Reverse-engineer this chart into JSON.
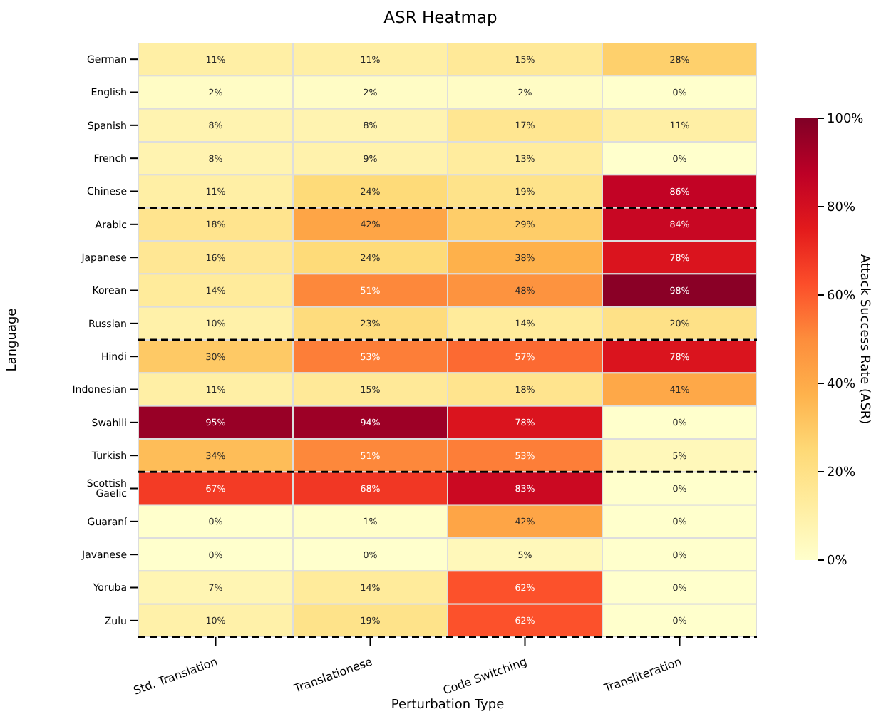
{
  "chart_data": {
    "type": "heatmap",
    "title": "ASR Heatmap",
    "xlabel": "Perturbation Type",
    "ylabel": "Language",
    "clabel": "Attack Success Rate (ASR)",
    "categories": [
      "Std. Translation",
      "Translationese",
      "Code Switching",
      "Transliteration"
    ],
    "y_categories": [
      "German",
      "English",
      "Spanish",
      "French",
      "Chinese",
      "Arabic",
      "Japanese",
      "Korean",
      "Russian",
      "Hindi",
      "Indonesian",
      "Swahili",
      "Turkish",
      "Scottish Gaelic",
      "Guaraní",
      "Javanese",
      "Yoruba",
      "Zulu"
    ],
    "cells": [
      [
        11,
        11,
        15,
        28
      ],
      [
        2,
        2,
        2,
        0
      ],
      [
        8,
        8,
        17,
        11
      ],
      [
        8,
        9,
        13,
        0
      ],
      [
        11,
        24,
        19,
        86
      ],
      [
        18,
        42,
        29,
        84
      ],
      [
        16,
        24,
        38,
        78
      ],
      [
        14,
        51,
        48,
        98
      ],
      [
        10,
        23,
        14,
        20
      ],
      [
        30,
        53,
        57,
        78
      ],
      [
        11,
        15,
        18,
        41
      ],
      [
        95,
        94,
        78,
        0
      ],
      [
        34,
        51,
        53,
        5
      ],
      [
        67,
        68,
        83,
        0
      ],
      [
        0,
        1,
        42,
        0
      ],
      [
        0,
        0,
        5,
        0
      ],
      [
        7,
        14,
        62,
        0
      ],
      [
        10,
        19,
        62,
        0
      ]
    ],
    "cell_labels": [
      [
        "11%",
        "11%",
        "15%",
        "28%"
      ],
      [
        "2%",
        "2%",
        "2%",
        "0%"
      ],
      [
        "8%",
        "8%",
        "17%",
        "11%"
      ],
      [
        "8%",
        "9%",
        "13%",
        "0%"
      ],
      [
        "11%",
        "24%",
        "19%",
        "86%"
      ],
      [
        "18%",
        "42%",
        "29%",
        "84%"
      ],
      [
        "16%",
        "24%",
        "38%",
        "78%"
      ],
      [
        "14%",
        "51%",
        "48%",
        "98%"
      ],
      [
        "10%",
        "23%",
        "14%",
        "20%"
      ],
      [
        "30%",
        "53%",
        "57%",
        "78%"
      ],
      [
        "11%",
        "15%",
        "18%",
        "41%"
      ],
      [
        "95%",
        "94%",
        "78%",
        "0%"
      ],
      [
        "34%",
        "51%",
        "53%",
        "5%"
      ],
      [
        "67%",
        "68%",
        "83%",
        "0%"
      ],
      [
        "0%",
        "1%",
        "42%",
        "0%"
      ],
      [
        "0%",
        "0%",
        "5%",
        "0%"
      ],
      [
        "7%",
        "14%",
        "62%",
        "0%"
      ],
      [
        "10%",
        "19%",
        "62%",
        "0%"
      ]
    ],
    "clim": [
      0,
      100
    ],
    "cticks": [
      {
        "value": 0,
        "label": "0%"
      },
      {
        "value": 20,
        "label": "20%"
      },
      {
        "value": 40,
        "label": "40%"
      },
      {
        "value": 60,
        "label": "60%"
      },
      {
        "value": 80,
        "label": "80%"
      },
      {
        "value": 100,
        "label": "100%"
      }
    ],
    "ref_lines": [
      {
        "axis": "y",
        "value": "Chinese",
        "line_style": "dashed",
        "color": "#000000"
      },
      {
        "axis": "y",
        "value": "Russian",
        "line_style": "dashed",
        "color": "#000000"
      },
      {
        "axis": "y",
        "value": "Turkish",
        "line_style": "dashed",
        "color": "#000000"
      },
      {
        "axis": "y",
        "value": "Zulu",
        "line_style": "dashed",
        "color": "#000000"
      }
    ]
  }
}
